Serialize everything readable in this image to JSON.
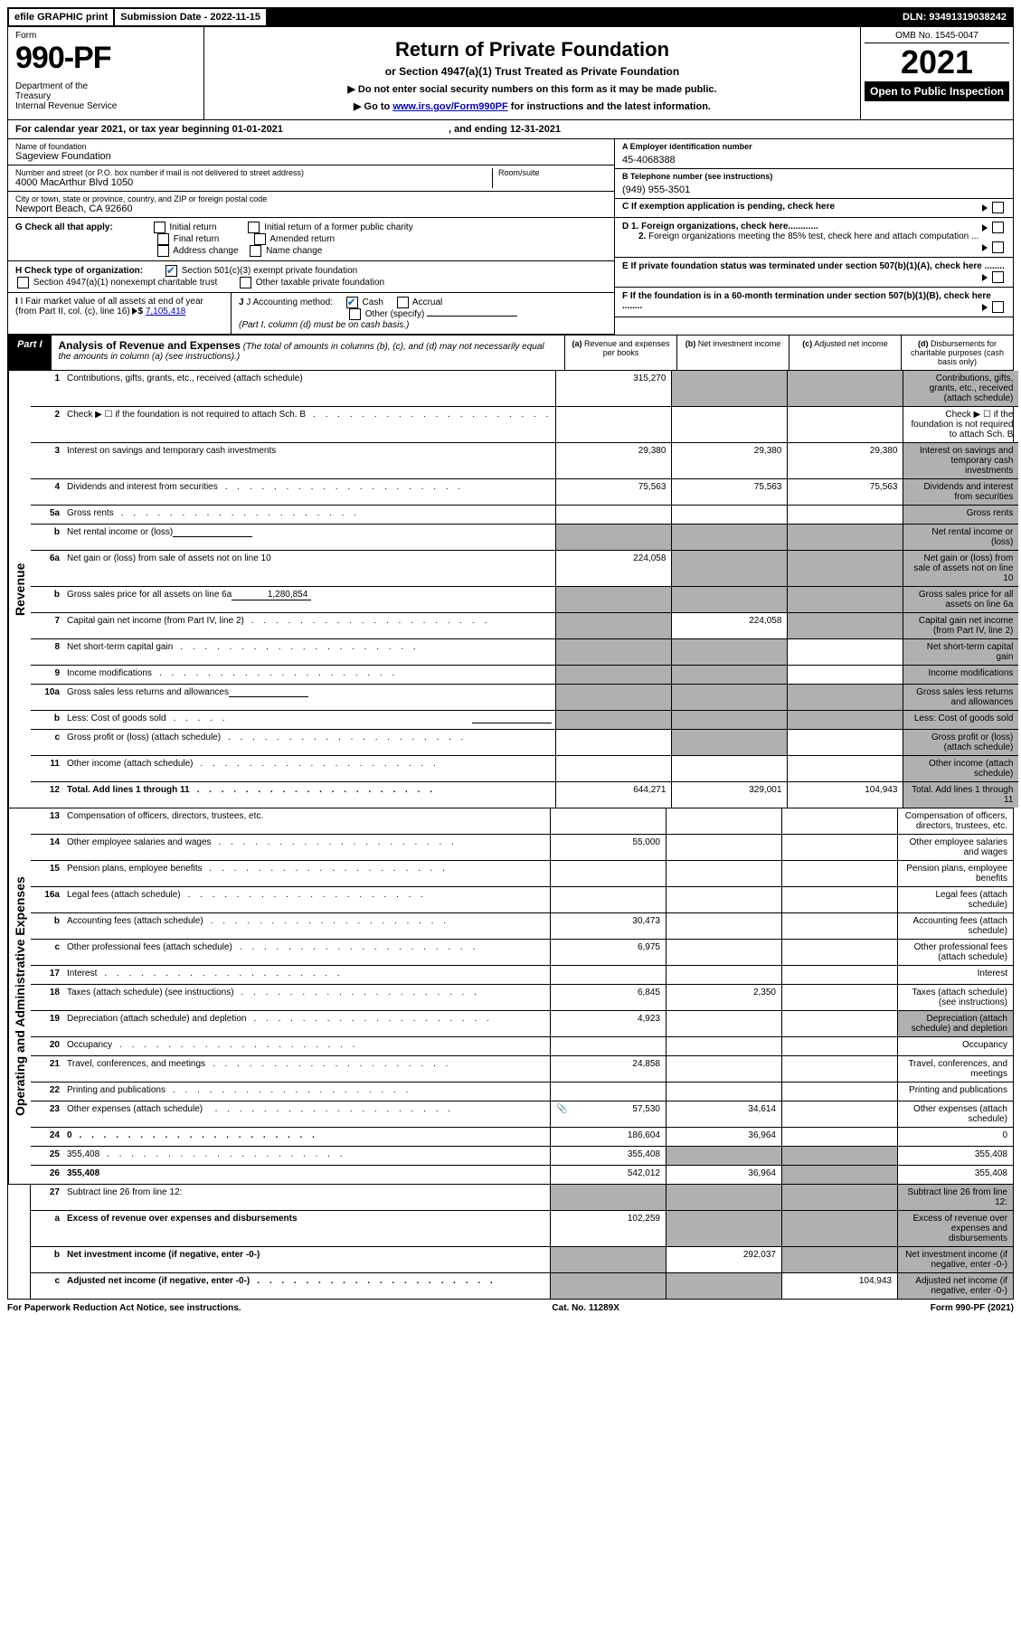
{
  "top": {
    "efile": "efile GRAPHIC print",
    "sub_date_label": "Submission Date - ",
    "sub_date": "2022-11-15",
    "dln_label": "DLN: ",
    "dln": "93491319038242"
  },
  "header": {
    "form_label": "Form",
    "form_no": "990-PF",
    "dept": "Department of the Treasury\nInternal Revenue Service",
    "title": "Return of Private Foundation",
    "subtitle": "or Section 4947(a)(1) Trust Treated as Private Foundation",
    "note1": "▶ Do not enter social security numbers on this form as it may be made public.",
    "note2_pre": "▶ Go to ",
    "note2_link": "www.irs.gov/Form990PF",
    "note2_post": " for instructions and the latest information.",
    "omb": "OMB No. 1545-0047",
    "year": "2021",
    "open": "Open to Public Inspection"
  },
  "calyear": {
    "text": "For calendar year 2021, or tax year beginning 01-01-2021",
    "end": ", and ending 12-31-2021"
  },
  "name": {
    "lbl": "Name of foundation",
    "val": "Sageview Foundation"
  },
  "addr": {
    "lbl": "Number and street (or P.O. box number if mail is not delivered to street address)",
    "val": "4000 MacArthur Blvd 1050",
    "room_lbl": "Room/suite"
  },
  "city": {
    "lbl": "City or town, state or province, country, and ZIP or foreign postal code",
    "val": "Newport Beach, CA  92660"
  },
  "right": {
    "a_lbl": "A Employer identification number",
    "a_val": "45-4068388",
    "b_lbl": "B Telephone number (see instructions)",
    "b_val": "(949) 955-3501",
    "c_lbl": "C If exemption application is pending, check here",
    "d1": "D 1. Foreign organizations, check here............",
    "d2": "2. Foreign organizations meeting the 85% test, check here and attach computation ...",
    "e": "E  If private foundation status was terminated under section 507(b)(1)(A), check here ........",
    "f": "F  If the foundation is in a 60-month termination under section 507(b)(1)(B), check here ........"
  },
  "g": {
    "lbl": "G Check all that apply:",
    "opts": [
      "Initial return",
      "Initial return of a former public charity",
      "Final return",
      "Amended return",
      "Address change",
      "Name change"
    ]
  },
  "h": {
    "lbl": "H Check type of organization:",
    "opt1": "Section 501(c)(3) exempt private foundation",
    "opt2": "Section 4947(a)(1) nonexempt charitable trust",
    "opt3": "Other taxable private foundation"
  },
  "i": {
    "lbl": "I Fair market value of all assets at end of year (from Part II, col. (c), line 16)",
    "amt": "7,105,418"
  },
  "j": {
    "lbl": "J Accounting method:",
    "cash": "Cash",
    "accrual": "Accrual",
    "other": "Other (specify)",
    "note": "(Part I, column (d) must be on cash basis.)"
  },
  "part1": {
    "tab": "Part I",
    "title": "Analysis of Revenue and Expenses",
    "note": "(The total of amounts in columns (b), (c), and (d) may not necessarily equal the amounts in column (a) (see instructions).)",
    "col_a": "(a)  Revenue and expenses per books",
    "col_b": "(b)  Net investment income",
    "col_c": "(c)  Adjusted net income",
    "col_d": "(d)  Disbursements for charitable purposes (cash basis only)"
  },
  "sidelabels": {
    "rev": "Revenue",
    "exp": "Operating and Administrative Expenses"
  },
  "lines": [
    {
      "n": "1",
      "d": "Contributions, gifts, grants, etc., received (attach schedule)",
      "a": "315,270",
      "bg": true,
      "cg": true,
      "dg": true,
      "dots": false
    },
    {
      "n": "2",
      "d": "Check ▶ ☐ if the foundation is not required to attach Sch. B",
      "dots": true,
      "noval": true
    },
    {
      "n": "3",
      "d": "Interest on savings and temporary cash investments",
      "a": "29,380",
      "b": "29,380",
      "c": "29,380",
      "dg": true
    },
    {
      "n": "4",
      "d": "Dividends and interest from securities",
      "a": "75,563",
      "b": "75,563",
      "c": "75,563",
      "dg": true,
      "dots": true
    },
    {
      "n": "5a",
      "d": "Gross rents",
      "dg": true,
      "dots": true
    },
    {
      "n": "b",
      "d": "Net rental income or (loss)",
      "inline": true,
      "ag": true,
      "bg": true,
      "cg": true,
      "dg": true
    },
    {
      "n": "6a",
      "d": "Net gain or (loss) from sale of assets not on line 10",
      "a": "224,058",
      "bg": true,
      "cg": true,
      "dg": true
    },
    {
      "n": "b",
      "d": "Gross sales price for all assets on line 6a",
      "inline": true,
      "inlineval": "1,280,854",
      "ag": true,
      "bg": true,
      "cg": true,
      "dg": true
    },
    {
      "n": "7",
      "d": "Capital gain net income (from Part IV, line 2)",
      "ag": true,
      "b": "224,058",
      "cg": true,
      "dg": true,
      "dots": true
    },
    {
      "n": "8",
      "d": "Net short-term capital gain",
      "ag": true,
      "bg": true,
      "dg": true,
      "dots": true
    },
    {
      "n": "9",
      "d": "Income modifications",
      "ag": true,
      "bg": true,
      "dg": true,
      "dots": true
    },
    {
      "n": "10a",
      "d": "Gross sales less returns and allowances",
      "inline": true,
      "ag": true,
      "bg": true,
      "cg": true,
      "dg": true
    },
    {
      "n": "b",
      "d": "Less: Cost of goods sold",
      "inline": true,
      "ag": true,
      "bg": true,
      "cg": true,
      "dg": true,
      "dots": true
    },
    {
      "n": "c",
      "d": "Gross profit or (loss) (attach schedule)",
      "bg": true,
      "dg": true,
      "dots": true
    },
    {
      "n": "11",
      "d": "Other income (attach schedule)",
      "dg": true,
      "dots": true
    },
    {
      "n": "12",
      "d": "Total. Add lines 1 through 11",
      "bold": true,
      "a": "644,271",
      "b": "329,001",
      "c": "104,943",
      "dg": true,
      "dots": true
    }
  ],
  "exp_lines": [
    {
      "n": "13",
      "d": "Compensation of officers, directors, trustees, etc."
    },
    {
      "n": "14",
      "d": "Other employee salaries and wages",
      "a": "55,000",
      "dots": true
    },
    {
      "n": "15",
      "d": "Pension plans, employee benefits",
      "dots": true
    },
    {
      "n": "16a",
      "d": "Legal fees (attach schedule)",
      "dots": true
    },
    {
      "n": "b",
      "d": "Accounting fees (attach schedule)",
      "a": "30,473",
      "dots": true
    },
    {
      "n": "c",
      "d": "Other professional fees (attach schedule)",
      "a": "6,975",
      "dots": true
    },
    {
      "n": "17",
      "d": "Interest",
      "dots": true
    },
    {
      "n": "18",
      "d": "Taxes (attach schedule) (see instructions)",
      "a": "6,845",
      "b": "2,350",
      "dots": true
    },
    {
      "n": "19",
      "d": "Depreciation (attach schedule) and depletion",
      "a": "4,923",
      "dg": true,
      "dots": true
    },
    {
      "n": "20",
      "d": "Occupancy",
      "dots": true
    },
    {
      "n": "21",
      "d": "Travel, conferences, and meetings",
      "a": "24,858",
      "dots": true
    },
    {
      "n": "22",
      "d": "Printing and publications",
      "dots": true
    },
    {
      "n": "23",
      "d": "Other expenses (attach schedule)",
      "a": "57,530",
      "b": "34,614",
      "dots": true,
      "attach": true
    },
    {
      "n": "24",
      "d": "0",
      "bold": true,
      "a": "186,604",
      "b": "36,964",
      "dots": true
    },
    {
      "n": "25",
      "d": "355,408",
      "a": "355,408",
      "bg": true,
      "cg": true,
      "dots": true
    },
    {
      "n": "26",
      "d": "355,408",
      "bold": true,
      "a": "542,012",
      "b": "36,964",
      "cg": true
    }
  ],
  "final_lines": [
    {
      "n": "27",
      "d": "Subtract line 26 from line 12:",
      "ag": true,
      "bg": true,
      "cg": true,
      "dg": true
    },
    {
      "n": "a",
      "d": "Excess of revenue over expenses and disbursements",
      "bold": true,
      "a": "102,259",
      "bg": true,
      "cg": true,
      "dg": true
    },
    {
      "n": "b",
      "d": "Net investment income (if negative, enter -0-)",
      "bold": true,
      "ag": true,
      "b": "292,037",
      "cg": true,
      "dg": true
    },
    {
      "n": "c",
      "d": "Adjusted net income (if negative, enter -0-)",
      "bold": true,
      "ag": true,
      "bg": true,
      "c": "104,943",
      "dg": true,
      "dots": true
    }
  ],
  "footer": {
    "left": "For Paperwork Reduction Act Notice, see instructions.",
    "center": "Cat. No. 11289X",
    "right": "Form 990-PF (2021)"
  }
}
